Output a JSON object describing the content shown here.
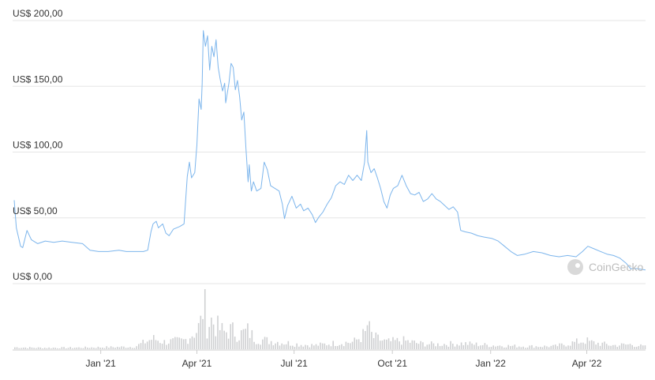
{
  "watermark": {
    "text": "CoinGecko",
    "icon": "coingecko-logo-icon"
  },
  "colors": {
    "price_line": "#7cb5ec",
    "volume_bar": "#cfd0d2",
    "grid": "#e6e6e6",
    "axis_text": "#333333",
    "watermark": "#bdbdbd"
  },
  "chart_data": {
    "type": "line",
    "title": "",
    "xlabel": "",
    "ylabel": "",
    "ylim": [
      0,
      200
    ],
    "y_ticks": [
      "US$ 0,00",
      "US$ 50,00",
      "US$ 100,00",
      "US$ 150,00",
      "US$ 200,00"
    ],
    "y_tick_values": [
      0,
      50,
      100,
      150,
      200
    ],
    "x_ticks": [
      "Jan '21",
      "Apr '21",
      "Jul '21",
      "Oct '21",
      "Jan '22",
      "Apr '22"
    ],
    "x_tick_dates": [
      "2021-01-01",
      "2021-04-01",
      "2021-07-01",
      "2021-10-01",
      "2022-01-01",
      "2022-04-01"
    ],
    "xlim": [
      "2020-10-12",
      "2022-05-26"
    ],
    "grid": true,
    "series": [
      {
        "points": [
          [
            "2020-10-12",
            61
          ],
          [
            "2020-10-14",
            40
          ],
          [
            "2020-10-18",
            26
          ],
          [
            "2020-10-20",
            25
          ],
          [
            "2020-10-24",
            38
          ],
          [
            "2020-10-28",
            31
          ],
          [
            "2020-11-03",
            28
          ],
          [
            "2020-11-10",
            30
          ],
          [
            "2020-11-18",
            29
          ],
          [
            "2020-11-26",
            30
          ],
          [
            "2020-12-05",
            29
          ],
          [
            "2020-12-15",
            28
          ],
          [
            "2020-12-22",
            23
          ],
          [
            "2020-12-30",
            22
          ],
          [
            "2021-01-08",
            22
          ],
          [
            "2021-01-18",
            23
          ],
          [
            "2021-01-25",
            22
          ],
          [
            "2021-02-02",
            22
          ],
          [
            "2021-02-10",
            22
          ],
          [
            "2021-02-14",
            23
          ],
          [
            "2021-02-17",
            37
          ],
          [
            "2021-02-19",
            43
          ],
          [
            "2021-02-22",
            45
          ],
          [
            "2021-02-24",
            40
          ],
          [
            "2021-02-28",
            43
          ],
          [
            "2021-03-03",
            36
          ],
          [
            "2021-03-06",
            34
          ],
          [
            "2021-03-10",
            39
          ],
          [
            "2021-03-16",
            41
          ],
          [
            "2021-03-20",
            43
          ],
          [
            "2021-03-23",
            79
          ],
          [
            "2021-03-25",
            90
          ],
          [
            "2021-03-27",
            78
          ],
          [
            "2021-03-30",
            82
          ],
          [
            "2021-04-01",
            103
          ],
          [
            "2021-04-02",
            120
          ],
          [
            "2021-04-03",
            138
          ],
          [
            "2021-04-05",
            130
          ],
          [
            "2021-04-06",
            150
          ],
          [
            "2021-04-07",
            190
          ],
          [
            "2021-04-09",
            178
          ],
          [
            "2021-04-11",
            186
          ],
          [
            "2021-04-13",
            160
          ],
          [
            "2021-04-15",
            178
          ],
          [
            "2021-04-17",
            170
          ],
          [
            "2021-04-19",
            183
          ],
          [
            "2021-04-21",
            162
          ],
          [
            "2021-04-23",
            152
          ],
          [
            "2021-04-25",
            144
          ],
          [
            "2021-04-27",
            150
          ],
          [
            "2021-04-28",
            135
          ],
          [
            "2021-05-01",
            150
          ],
          [
            "2021-05-03",
            165
          ],
          [
            "2021-05-05",
            162
          ],
          [
            "2021-05-07",
            145
          ],
          [
            "2021-05-09",
            152
          ],
          [
            "2021-05-11",
            140
          ],
          [
            "2021-05-13",
            122
          ],
          [
            "2021-05-15",
            128
          ],
          [
            "2021-05-17",
            100
          ],
          [
            "2021-05-19",
            75
          ],
          [
            "2021-05-20",
            88
          ],
          [
            "2021-05-22",
            68
          ],
          [
            "2021-05-24",
            75
          ],
          [
            "2021-05-27",
            68
          ],
          [
            "2021-05-31",
            70
          ],
          [
            "2021-06-03",
            90
          ],
          [
            "2021-06-06",
            84
          ],
          [
            "2021-06-09",
            72
          ],
          [
            "2021-06-13",
            70
          ],
          [
            "2021-06-17",
            68
          ],
          [
            "2021-06-20",
            58
          ],
          [
            "2021-06-22",
            47
          ],
          [
            "2021-06-25",
            57
          ],
          [
            "2021-06-29",
            64
          ],
          [
            "2021-07-03",
            55
          ],
          [
            "2021-07-07",
            58
          ],
          [
            "2021-07-10",
            53
          ],
          [
            "2021-07-14",
            55
          ],
          [
            "2021-07-18",
            50
          ],
          [
            "2021-07-21",
            44
          ],
          [
            "2021-07-24",
            48
          ],
          [
            "2021-07-28",
            52
          ],
          [
            "2021-08-01",
            58
          ],
          [
            "2021-08-05",
            63
          ],
          [
            "2021-08-09",
            72
          ],
          [
            "2021-08-13",
            75
          ],
          [
            "2021-08-17",
            73
          ],
          [
            "2021-08-21",
            80
          ],
          [
            "2021-08-25",
            76
          ],
          [
            "2021-08-29",
            80
          ],
          [
            "2021-09-02",
            76
          ],
          [
            "2021-09-05",
            90
          ],
          [
            "2021-09-07",
            114
          ],
          [
            "2021-09-08",
            90
          ],
          [
            "2021-09-11",
            82
          ],
          [
            "2021-09-14",
            85
          ],
          [
            "2021-09-17",
            78
          ],
          [
            "2021-09-20",
            70
          ],
          [
            "2021-09-23",
            60
          ],
          [
            "2021-09-26",
            55
          ],
          [
            "2021-09-29",
            65
          ],
          [
            "2021-10-02",
            70
          ],
          [
            "2021-10-06",
            72
          ],
          [
            "2021-10-10",
            80
          ],
          [
            "2021-10-14",
            72
          ],
          [
            "2021-10-18",
            66
          ],
          [
            "2021-10-22",
            65
          ],
          [
            "2021-10-26",
            67
          ],
          [
            "2021-10-30",
            60
          ],
          [
            "2021-11-03",
            62
          ],
          [
            "2021-11-07",
            66
          ],
          [
            "2021-11-11",
            62
          ],
          [
            "2021-11-15",
            60
          ],
          [
            "2021-11-19",
            57
          ],
          [
            "2021-11-23",
            54
          ],
          [
            "2021-11-27",
            56
          ],
          [
            "2021-12-01",
            52
          ],
          [
            "2021-12-04",
            38
          ],
          [
            "2021-12-08",
            37
          ],
          [
            "2021-12-14",
            36
          ],
          [
            "2021-12-20",
            34
          ],
          [
            "2021-12-26",
            33
          ],
          [
            "2022-01-02",
            32
          ],
          [
            "2022-01-08",
            30
          ],
          [
            "2022-01-14",
            26
          ],
          [
            "2022-01-20",
            22
          ],
          [
            "2022-01-26",
            19
          ],
          [
            "2022-02-02",
            20
          ],
          [
            "2022-02-10",
            22
          ],
          [
            "2022-02-18",
            21
          ],
          [
            "2022-02-26",
            19
          ],
          [
            "2022-03-06",
            18
          ],
          [
            "2022-03-14",
            19
          ],
          [
            "2022-03-22",
            18
          ],
          [
            "2022-03-28",
            22
          ],
          [
            "2022-04-02",
            26
          ],
          [
            "2022-04-08",
            24
          ],
          [
            "2022-04-14",
            22
          ],
          [
            "2022-04-20",
            20
          ],
          [
            "2022-04-26",
            19
          ],
          [
            "2022-05-02",
            17
          ],
          [
            "2022-05-08",
            13
          ],
          [
            "2022-05-12",
            9
          ],
          [
            "2022-05-18",
            9
          ],
          [
            "2022-05-26",
            8
          ]
        ]
      }
    ],
    "volume": {
      "relative_scale": true,
      "points": [
        [
          "2020-10-12",
          0.04
        ],
        [
          "2020-11-01",
          0.03
        ],
        [
          "2020-12-01",
          0.03
        ],
        [
          "2021-01-01",
          0.04
        ],
        [
          "2021-02-01",
          0.05
        ],
        [
          "2021-02-18",
          0.22
        ],
        [
          "2021-03-01",
          0.15
        ],
        [
          "2021-03-20",
          0.18
        ],
        [
          "2021-03-26",
          0.3
        ],
        [
          "2021-04-01",
          0.4
        ],
        [
          "2021-04-04",
          0.55
        ],
        [
          "2021-04-07",
          1.0
        ],
        [
          "2021-04-10",
          0.5
        ],
        [
          "2021-04-14",
          0.6
        ],
        [
          "2021-04-20",
          0.45
        ],
        [
          "2021-04-26",
          0.35
        ],
        [
          "2021-05-03",
          0.4
        ],
        [
          "2021-05-10",
          0.3
        ],
        [
          "2021-05-18",
          0.38
        ],
        [
          "2021-05-25",
          0.22
        ],
        [
          "2021-06-05",
          0.18
        ],
        [
          "2021-06-20",
          0.14
        ],
        [
          "2021-07-05",
          0.1
        ],
        [
          "2021-07-20",
          0.08
        ],
        [
          "2021-08-05",
          0.12
        ],
        [
          "2021-08-25",
          0.15
        ],
        [
          "2021-09-05",
          0.32
        ],
        [
          "2021-09-07",
          0.5
        ],
        [
          "2021-09-12",
          0.25
        ],
        [
          "2021-09-25",
          0.15
        ],
        [
          "2021-10-10",
          0.18
        ],
        [
          "2021-10-25",
          0.12
        ],
        [
          "2021-11-10",
          0.1
        ],
        [
          "2021-12-05",
          0.12
        ],
        [
          "2022-01-01",
          0.08
        ],
        [
          "2022-02-01",
          0.06
        ],
        [
          "2022-03-01",
          0.06
        ],
        [
          "2022-03-30",
          0.18
        ],
        [
          "2022-04-05",
          0.14
        ],
        [
          "2022-04-25",
          0.08
        ],
        [
          "2022-05-12",
          0.1
        ],
        [
          "2022-05-26",
          0.05
        ]
      ]
    }
  }
}
